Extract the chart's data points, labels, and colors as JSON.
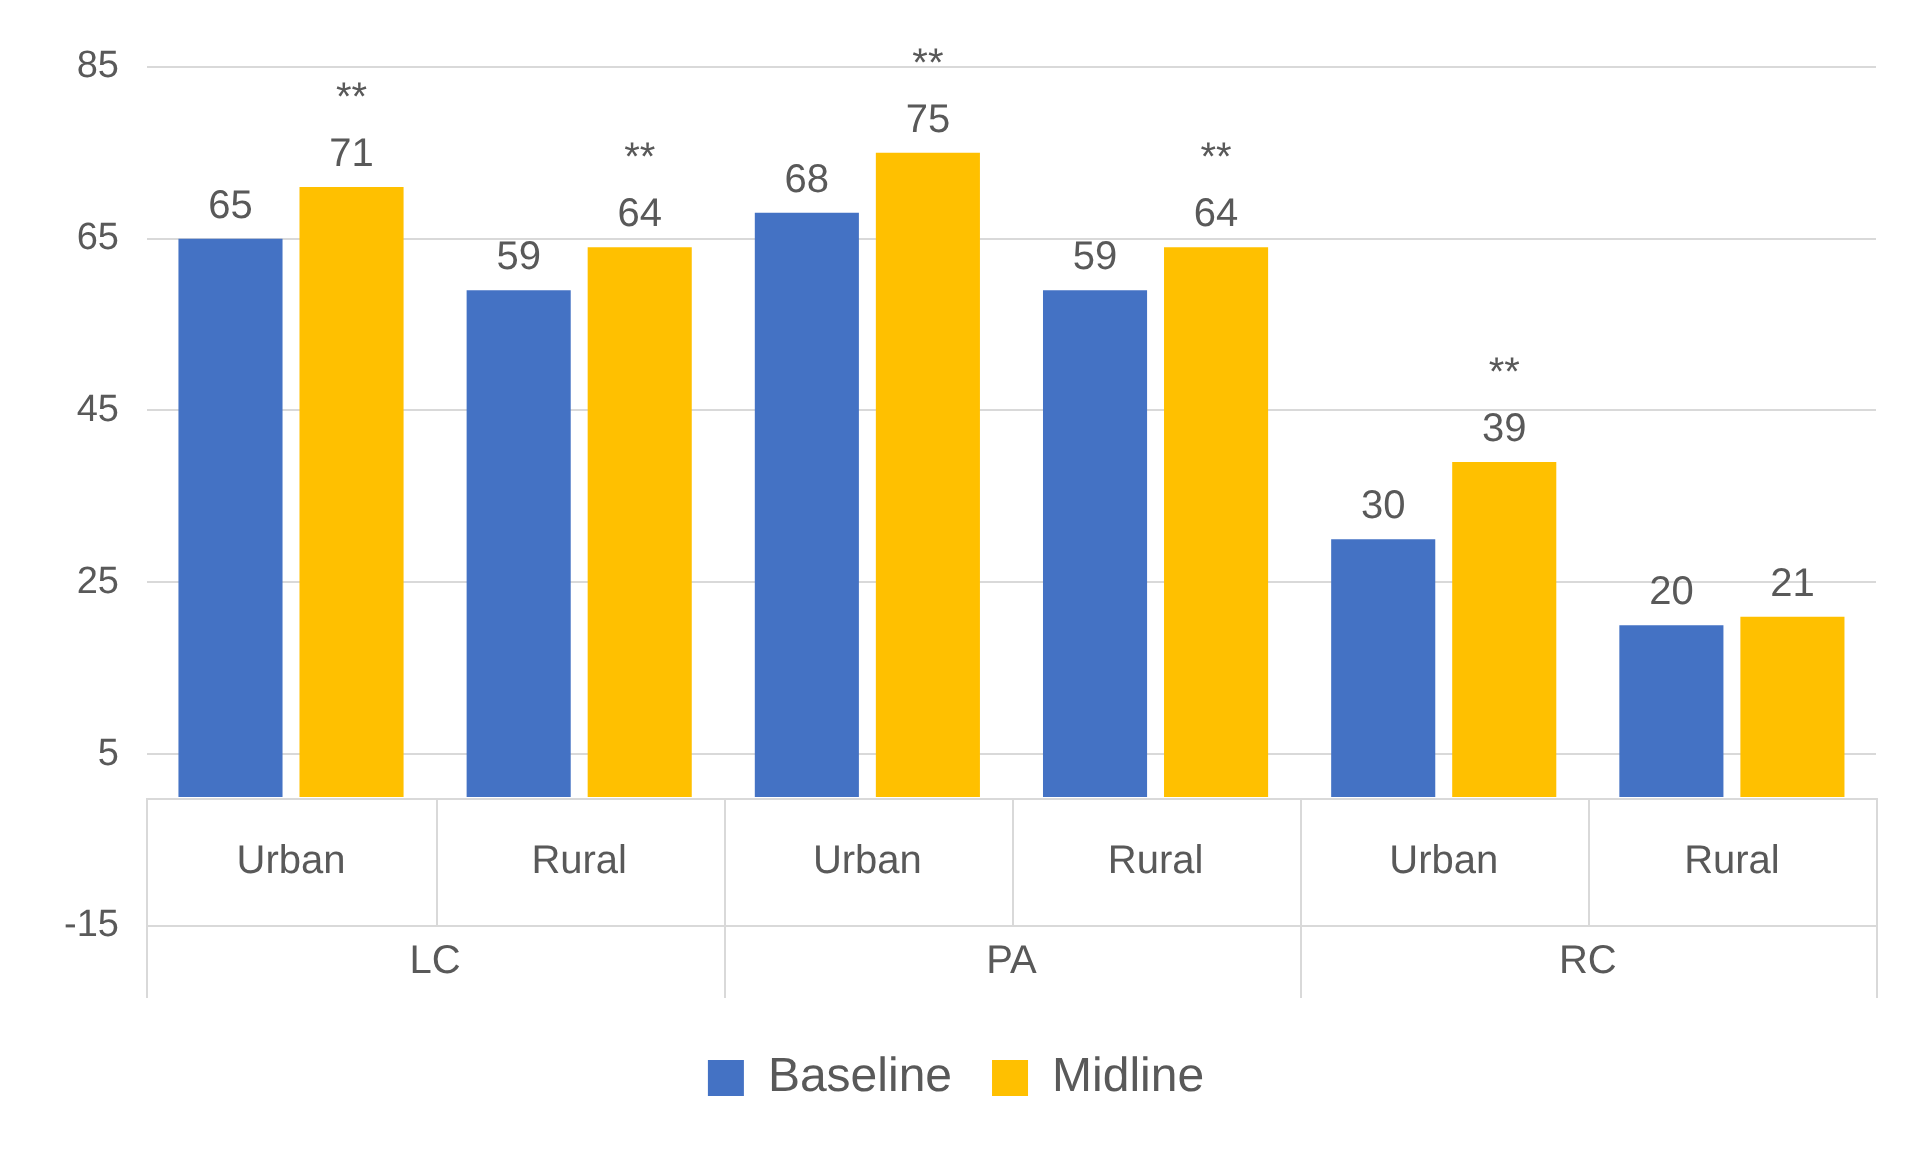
{
  "chart_data": {
    "type": "bar",
    "categories": [
      "Urban",
      "Rural",
      "Urban",
      "Rural",
      "Urban",
      "Rural"
    ],
    "series": [
      {
        "name": "Baseline",
        "color": "#4472c4",
        "values": [
          65,
          59,
          68,
          59,
          30,
          20
        ],
        "value_labels": [
          "65",
          "59",
          "68",
          "59",
          "30",
          "20"
        ]
      },
      {
        "name": "Midline",
        "color": "#ffc000",
        "values": [
          71,
          64,
          75,
          64,
          39,
          21
        ],
        "value_labels": [
          "**\n71",
          "**\n64",
          "**\n75",
          "**\n64",
          "**\n39",
          "21"
        ]
      }
    ],
    "ylim": [
      -15,
      85
    ],
    "yticks": [
      -15,
      5,
      25,
      45,
      65,
      85
    ],
    "grid": "y",
    "legend": "bottom",
    "annotations": [
      "LC",
      "PA",
      "RC"
    ]
  }
}
